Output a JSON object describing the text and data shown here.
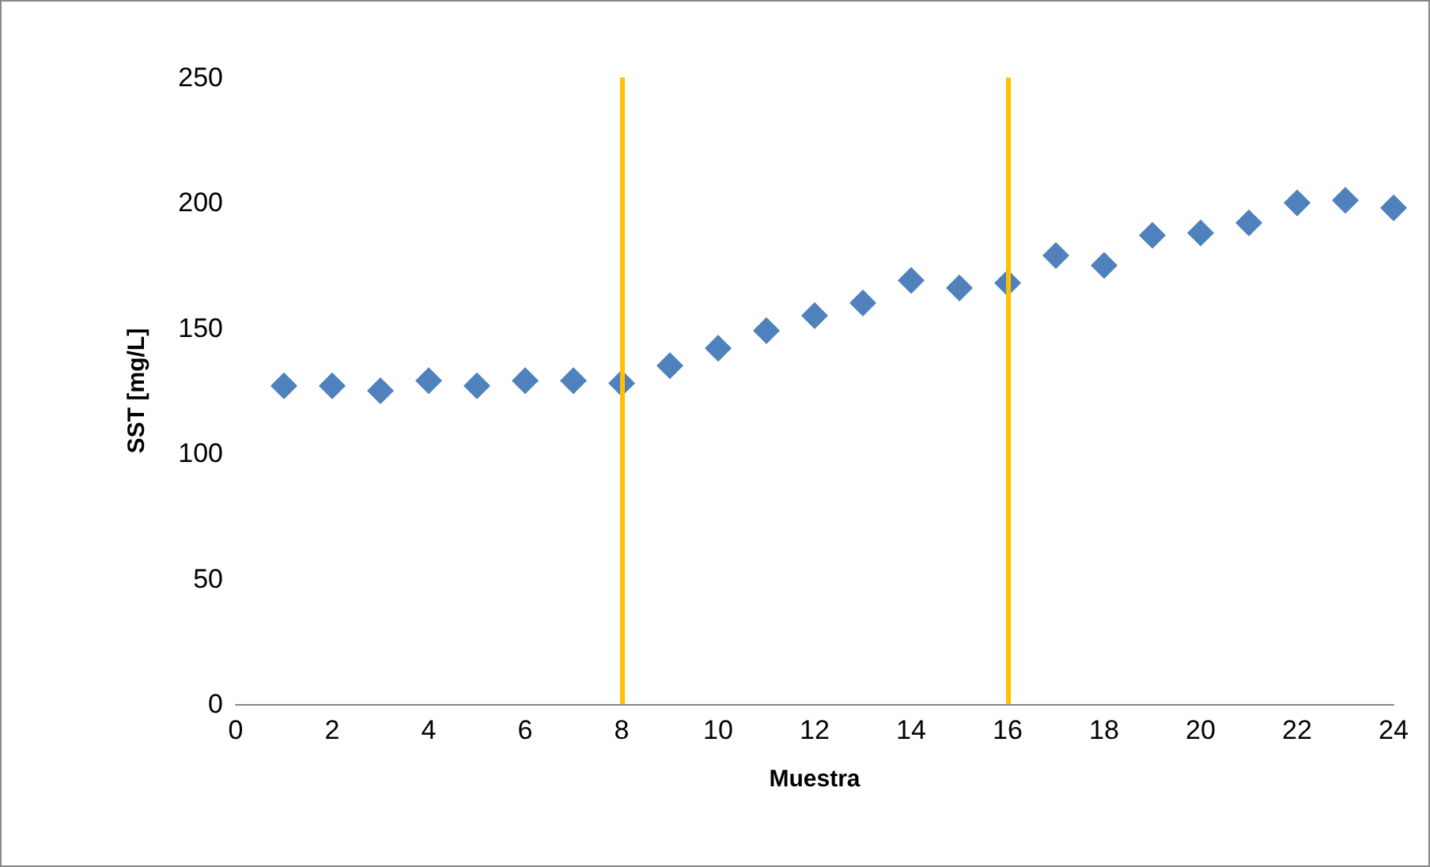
{
  "chart_data": {
    "type": "scatter",
    "xlabel": "Muestra",
    "ylabel": "SST [mg/L]",
    "x": [
      1,
      2,
      3,
      4,
      5,
      6,
      7,
      8,
      9,
      10,
      11,
      12,
      13,
      14,
      15,
      16,
      17,
      18,
      19,
      20,
      21,
      22,
      23,
      24
    ],
    "series": [
      {
        "color": "#4f81bd",
        "values": [
          127,
          127,
          125,
          129,
          127,
          129,
          129,
          128,
          135,
          142,
          149,
          155,
          160,
          169,
          166,
          168,
          179,
          175,
          187,
          188,
          192,
          200,
          201,
          198
        ]
      }
    ],
    "xlim": [
      0,
      24
    ],
    "xticks": [
      0,
      2,
      4,
      6,
      8,
      10,
      12,
      14,
      16,
      18,
      20,
      22,
      24
    ],
    "ylim": [
      0,
      250
    ],
    "yticks": [
      0,
      50,
      100,
      150,
      200,
      250
    ],
    "ref_lines": [
      {
        "axis": "x",
        "value": 8,
        "color": "#ffc000"
      },
      {
        "axis": "x",
        "value": 16,
        "color": "#ffc000"
      }
    ],
    "grid": false,
    "marker": "diamond"
  }
}
